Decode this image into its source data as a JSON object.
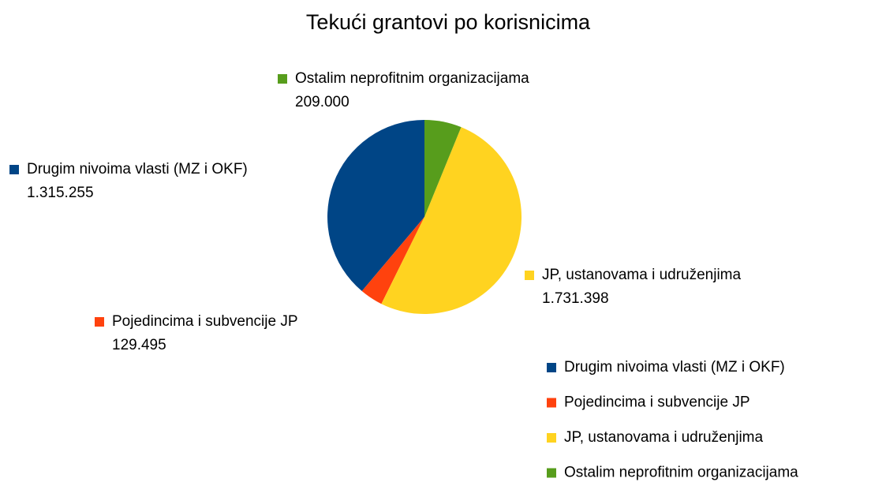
{
  "chart_data": {
    "type": "pie",
    "title": "Tekući grantovi po korisnicima",
    "categories": [
      "Drugim nivoima vlasti (MZ i OKF)",
      "Pojedincima i subvencije JP",
      "JP, ustanovama i udruženjima",
      "Ostalim neprofitnim organizacijama"
    ],
    "values": [
      1315255,
      129495,
      1731398,
      209000
    ],
    "value_labels": [
      "1.315.255",
      "129.495",
      "1.731.398",
      "209.000"
    ],
    "colors": [
      "#004586",
      "#ff420e",
      "#ffd320",
      "#579d1c"
    ],
    "legend": "bottom-right"
  }
}
